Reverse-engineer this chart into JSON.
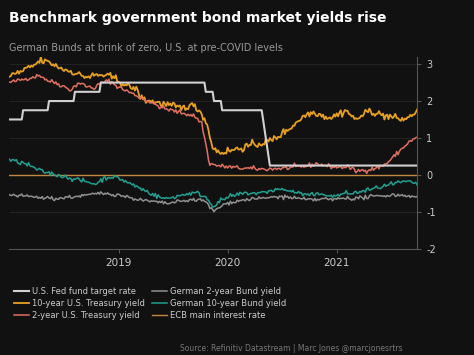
{
  "title": "Benchmark government bond market yields rise",
  "subtitle": "German Bunds at brink of zero, U.S. at pre-COVID levels",
  "source": "Source: Refinitiv Datastream | Marc Jones @marcjonesrtrs",
  "bg_color": "#111111",
  "text_color": "#cccccc",
  "ylim": [
    -2,
    3.2
  ],
  "yticks": [
    -2,
    -1,
    0,
    1,
    2,
    3
  ],
  "series": {
    "fed_fund": {
      "label": "U.S. Fed fund target rate",
      "color": "#d0d0d0",
      "lw": 1.5
    },
    "us2y": {
      "label": "2-year U.S. Treasury yield",
      "color": "#e07060",
      "lw": 1.1
    },
    "de10y": {
      "label": "German 10-year Bund yield",
      "color": "#20a090",
      "lw": 1.1
    },
    "us10y": {
      "label": "10-year U.S. Treasury yield",
      "color": "#e8a020",
      "lw": 1.3
    },
    "de2y": {
      "label": "German 2-year Bund yield",
      "color": "#909090",
      "lw": 1.1
    },
    "ecb": {
      "label": "ECB main interest rate",
      "color": "#c08840",
      "lw": 1.0
    }
  }
}
